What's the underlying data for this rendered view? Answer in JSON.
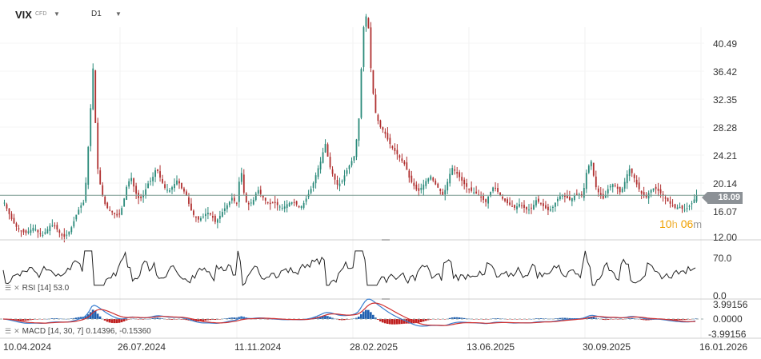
{
  "header": {
    "symbol": "VIX",
    "symbol_type": "CFD",
    "timeframe": "D1"
  },
  "price_axis": {
    "labels": [
      "40.49",
      "36.42",
      "32.35",
      "28.28",
      "24.21",
      "20.14",
      "16.07",
      "12.00"
    ],
    "current_price": "18.09"
  },
  "countdown": {
    "hours": "10",
    "h_unit": "h",
    "minutes": "06",
    "m_unit": "m"
  },
  "rsi": {
    "label": "RSI [14]",
    "value": "53.0",
    "axis_labels": [
      "70.0",
      "0.0"
    ]
  },
  "macd": {
    "label": "MACD [14, 30, 7]",
    "value1": "0.14396,",
    "value2": "-0.15360",
    "axis_labels": [
      "3.99156",
      "0.0000",
      "-3.99156"
    ]
  },
  "x_axis": {
    "labels": [
      "10.04.2024",
      "26.07.2024",
      "11.11.2024",
      "28.02.2025",
      "13.06.2025",
      "30.09.2025",
      "16.01.2026"
    ]
  },
  "colors": {
    "up": "#2a8a7a",
    "down": "#b03030",
    "last_price_line": "#7a9a90",
    "rsi_line": "#222222",
    "macd_line": "#3a7fd0",
    "signal_line": "#d03030",
    "hist_up": "#2060b0",
    "hist_down": "#c02020"
  },
  "chart_data": {
    "type": "candlestick",
    "price_ylim": [
      12.0,
      40.49
    ],
    "dates_x_labels": [
      "10.04.2024",
      "26.07.2024",
      "11.11.2024",
      "28.02.2025",
      "13.06.2025",
      "30.09.2025",
      "16.01.2026"
    ],
    "close_series": [
      17,
      15.5,
      14.2,
      13.3,
      12.8,
      12.5,
      12.9,
      13.4,
      12.6,
      12.2,
      12.9,
      13.8,
      13.5,
      12.6,
      11.9,
      12.4,
      13.5,
      15.2,
      16.5,
      17.2,
      26.5,
      36.8,
      22.5,
      18.5,
      16.5,
      15.8,
      15.4,
      15.0,
      16.5,
      19.5,
      20.8,
      18.6,
      17.4,
      18.2,
      19.8,
      20.5,
      22.2,
      20.5,
      19.2,
      18.7,
      19.5,
      20.4,
      19.1,
      18.3,
      16.2,
      15.0,
      14.5,
      14.9,
      15.6,
      15.2,
      14.1,
      15.0,
      16.0,
      16.8,
      17.8,
      16.6,
      22.3,
      17.2,
      16.7,
      17.4,
      19.0,
      18.0,
      17.2,
      16.8,
      17.0,
      16.5,
      16.2,
      16.8,
      17.1,
      16.9,
      16.2,
      17.0,
      18.2,
      19.5,
      21.5,
      23.2,
      25.8,
      22.5,
      20.8,
      19.5,
      20.2,
      21.6,
      22.8,
      24.0,
      29.5,
      42.5,
      45.3,
      35.0,
      30.0,
      28.2,
      27.5,
      26.0,
      25.0,
      24.2,
      23.3,
      22.5,
      20.5,
      19.5,
      18.6,
      19.4,
      20.3,
      20.9,
      19.8,
      19.0,
      18.0,
      20.1,
      22.2,
      21.5,
      20.6,
      19.7,
      19.0,
      18.6,
      18.3,
      17.8,
      17.0,
      18.4,
      19.5,
      18.5,
      17.6,
      17.0,
      16.6,
      16.2,
      16.8,
      16.3,
      15.9,
      16.2,
      17.4,
      16.9,
      16.3,
      15.8,
      16.4,
      17.5,
      18.2,
      17.8,
      17.4,
      18.0,
      18.3,
      17.9,
      21.8,
      23.2,
      19.5,
      18.2,
      17.5,
      19.0,
      19.8,
      19.3,
      18.4,
      20.1,
      22.1,
      21.0,
      19.4,
      18.3,
      17.7,
      18.8,
      19.2,
      18.7,
      18.1,
      17.3,
      16.7,
      16.2,
      16.4,
      15.9,
      16.3,
      17.0,
      18.09
    ],
    "rsi_ylim": [
      0,
      100
    ],
    "rsi_last": 53.0,
    "macd_ylim": [
      -3.99156,
      3.99156
    ],
    "macd_last": 0.14396,
    "signal_last": -0.1536
  }
}
